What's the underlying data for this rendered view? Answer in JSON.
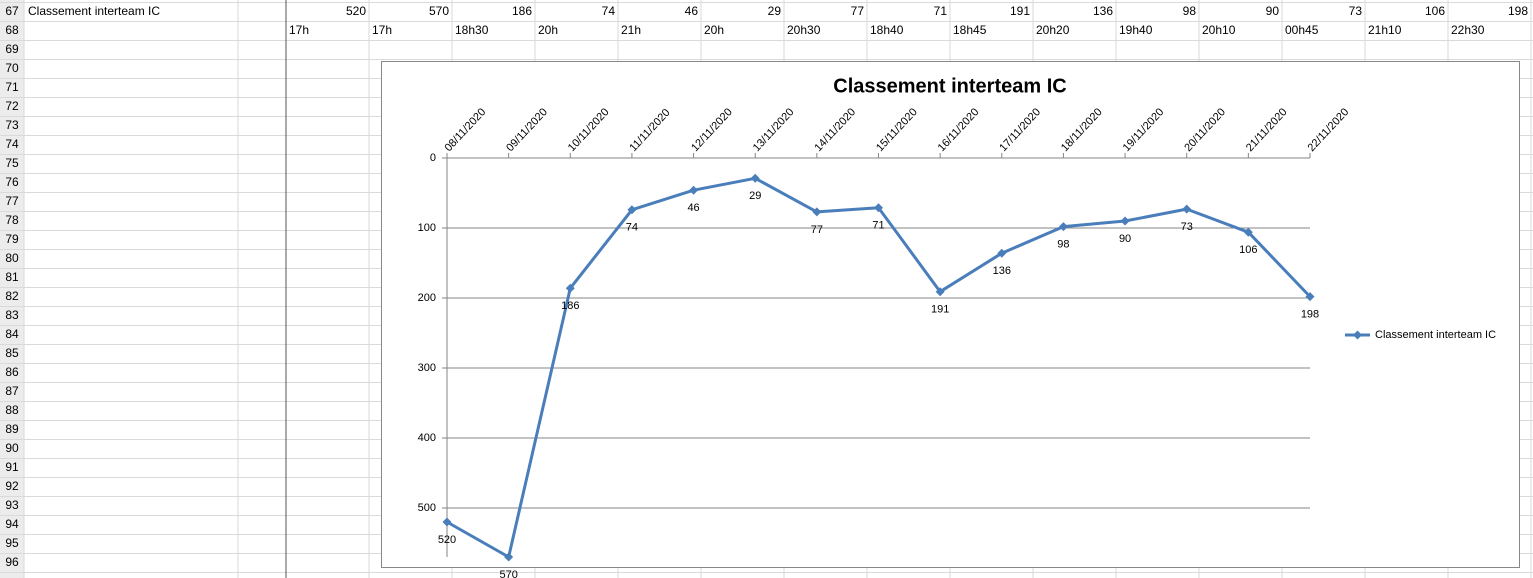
{
  "sheet": {
    "row_numbers": [
      67,
      68,
      69,
      70,
      71,
      72,
      73,
      74,
      75,
      76,
      77,
      78,
      79,
      80,
      81,
      82,
      83,
      84,
      85,
      86,
      87,
      88,
      89,
      90,
      91,
      92,
      93,
      94,
      95,
      96
    ],
    "row_67": {
      "label": "Classement interteam IC",
      "values": [
        520,
        570,
        186,
        74,
        46,
        29,
        77,
        71,
        191,
        136,
        98,
        90,
        73,
        106,
        198
      ]
    },
    "row_68": {
      "times": [
        "17h",
        "17h",
        "18h30",
        "20h",
        "21h",
        "20h",
        "20h30",
        "18h40",
        "18h45",
        "20h20",
        "19h40",
        "20h10",
        "00h45",
        "21h10",
        "22h30"
      ]
    }
  },
  "chart_data": {
    "type": "line",
    "title": "Classement interteam IC",
    "categories": [
      "08/11/2020",
      "09/11/2020",
      "10/11/2020",
      "11/11/2020",
      "12/11/2020",
      "13/11/2020",
      "14/11/2020",
      "15/11/2020",
      "16/11/2020",
      "17/11/2020",
      "18/11/2020",
      "19/11/2020",
      "20/11/2020",
      "21/11/2020",
      "22/11/2020"
    ],
    "series": [
      {
        "name": "Classement interteam IC",
        "color": "#4a7ebb",
        "values": [
          520,
          570,
          186,
          74,
          46,
          29,
          77,
          71,
          191,
          136,
          98,
          90,
          73,
          106,
          198
        ]
      }
    ],
    "ylim": [
      0,
      570
    ],
    "yticks": [
      0,
      100,
      200,
      300,
      400,
      500
    ],
    "y_inverted": true,
    "grid": true,
    "legend": "right",
    "data_labels": true
  }
}
